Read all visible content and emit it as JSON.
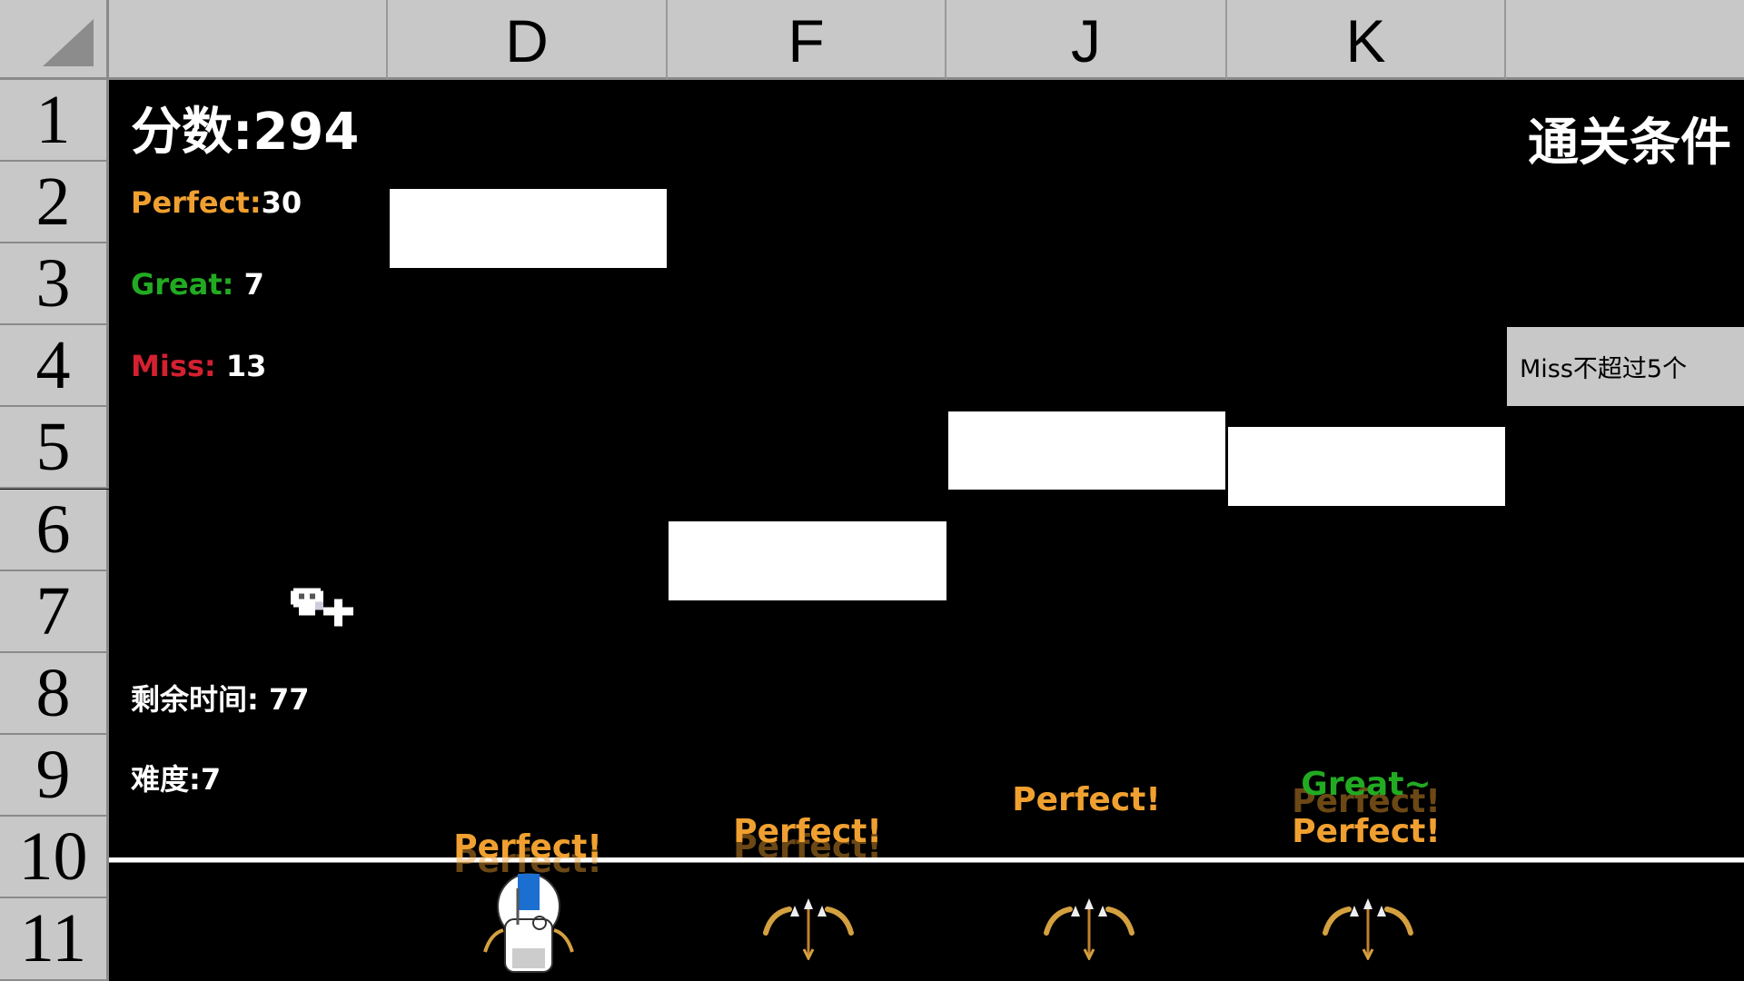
{
  "columns": [
    "",
    "D",
    "F",
    "J",
    "K",
    ""
  ],
  "rows": [
    "1",
    "2",
    "3",
    "4",
    "5",
    "6",
    "7",
    "8",
    "9",
    "10",
    "11"
  ],
  "hud": {
    "score_label": "分数:",
    "score": "294",
    "perfect_label": "Perfect:",
    "perfect": "30",
    "great_label": "Great:",
    "great": "7",
    "miss_label": "Miss:",
    "miss": "13",
    "time_label": "剩余时间:",
    "time": "77",
    "difficulty_label": "难度:",
    "difficulty": "7"
  },
  "clear_condition": {
    "title": "通关条件",
    "rule": "Miss不超过5个"
  },
  "judgements": {
    "D": [
      "Perfect!",
      "Perfect!"
    ],
    "F": [
      "Perfect!",
      "Perfect!"
    ],
    "J": [
      "Perfect!"
    ],
    "K": [
      "Great~",
      "Perfect!",
      "Perfect!"
    ]
  },
  "colors": {
    "perfect": "#f0a030",
    "great": "#22aa22",
    "miss": "#d42030",
    "header": "#c8c8c8",
    "note": "#ffffff"
  },
  "icons": {
    "lane_key": "bow-arrow-icon",
    "player": "robot-character-icon",
    "extra_life": "skull-plus-icon"
  }
}
